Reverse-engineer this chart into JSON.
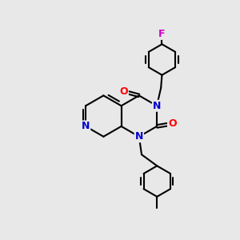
{
  "bg_color": "#e8e8e8",
  "bond_color": "#000000",
  "N_color": "#0000cc",
  "O_color": "#ff0000",
  "F_color": "#cc00cc",
  "bond_width": 1.5,
  "dbo": 0.055,
  "figsize": [
    3.0,
    3.0
  ],
  "dpi": 100,
  "xlim": [
    -1.5,
    1.5
  ],
  "ylim": [
    -1.8,
    1.8
  ]
}
